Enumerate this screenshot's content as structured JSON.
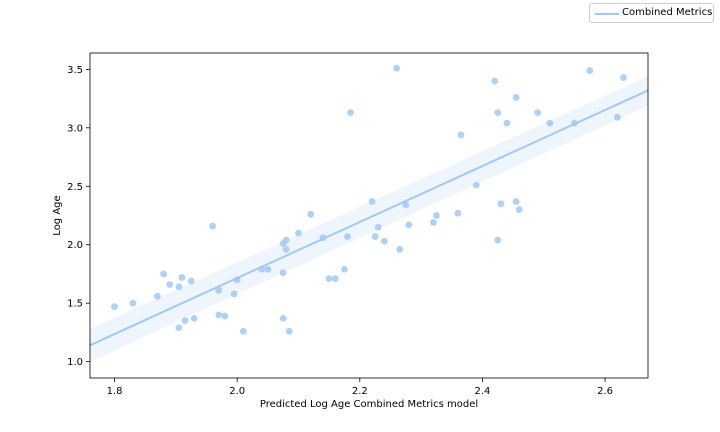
{
  "chart_data": {
    "type": "scatter",
    "xlabel": "Predicted Log Age Combined Metrics model",
    "ylabel": "Log Age",
    "xlim": [
      1.76,
      2.67
    ],
    "ylim": [
      0.86,
      3.64
    ],
    "x_ticks": [
      1.8,
      2.0,
      2.2,
      2.4,
      2.6
    ],
    "y_ticks": [
      1.0,
      1.5,
      2.0,
      2.5,
      3.0,
      3.5
    ],
    "x_tick_labels": [
      "1.8",
      "2.0",
      "2.2",
      "2.4",
      "2.6"
    ],
    "y_tick_labels": [
      "1.0",
      "1.5",
      "2.0",
      "2.5",
      "3.0",
      "3.5"
    ],
    "grid": false,
    "legend_position": "top-right",
    "series": [
      {
        "name": "Combined Metrics",
        "color": "#a1c9f4",
        "points": [
          [
            1.8,
            1.47
          ],
          [
            1.83,
            1.5
          ],
          [
            1.87,
            1.56
          ],
          [
            1.88,
            1.75
          ],
          [
            1.89,
            1.66
          ],
          [
            1.905,
            1.29
          ],
          [
            1.905,
            1.64
          ],
          [
            1.91,
            1.72
          ],
          [
            1.915,
            1.35
          ],
          [
            1.925,
            1.69
          ],
          [
            1.93,
            1.37
          ],
          [
            1.96,
            2.16
          ],
          [
            1.97,
            1.61
          ],
          [
            1.97,
            1.4
          ],
          [
            1.98,
            1.39
          ],
          [
            1.995,
            1.58
          ],
          [
            2.0,
            1.7
          ],
          [
            2.01,
            1.26
          ],
          [
            2.04,
            1.79
          ],
          [
            2.05,
            1.79
          ],
          [
            2.075,
            2.01
          ],
          [
            2.075,
            1.37
          ],
          [
            2.075,
            1.76
          ],
          [
            2.08,
            2.04
          ],
          [
            2.08,
            1.96
          ],
          [
            2.085,
            1.26
          ],
          [
            2.1,
            2.1
          ],
          [
            2.12,
            2.26
          ],
          [
            2.14,
            2.06
          ],
          [
            2.15,
            1.71
          ],
          [
            2.16,
            1.71
          ],
          [
            2.175,
            1.79
          ],
          [
            2.18,
            2.07
          ],
          [
            2.185,
            3.13
          ],
          [
            2.22,
            2.37
          ],
          [
            2.225,
            2.07
          ],
          [
            2.23,
            2.15
          ],
          [
            2.24,
            2.03
          ],
          [
            2.26,
            3.51
          ],
          [
            2.265,
            1.96
          ],
          [
            2.275,
            2.34
          ],
          [
            2.28,
            2.17
          ],
          [
            2.32,
            2.19
          ],
          [
            2.325,
            2.25
          ],
          [
            2.36,
            2.27
          ],
          [
            2.365,
            2.94
          ],
          [
            2.39,
            2.51
          ],
          [
            2.42,
            3.4
          ],
          [
            2.425,
            2.04
          ],
          [
            2.425,
            3.13
          ],
          [
            2.43,
            2.35
          ],
          [
            2.44,
            3.04
          ],
          [
            2.455,
            3.26
          ],
          [
            2.455,
            2.37
          ],
          [
            2.46,
            2.3
          ],
          [
            2.49,
            3.13
          ],
          [
            2.51,
            3.04
          ],
          [
            2.55,
            3.04
          ],
          [
            2.575,
            3.49
          ],
          [
            2.62,
            3.09
          ],
          [
            2.63,
            3.43
          ]
        ]
      }
    ],
    "regression": {
      "x": [
        1.76,
        2.67
      ],
      "y": [
        1.14,
        3.32
      ],
      "ci_upper": [
        1.28,
        3.44
      ],
      "ci_lower": [
        1.0,
        3.19
      ]
    }
  },
  "legend": {
    "label": "Combined Metrics",
    "color": "#a1c9f4"
  }
}
